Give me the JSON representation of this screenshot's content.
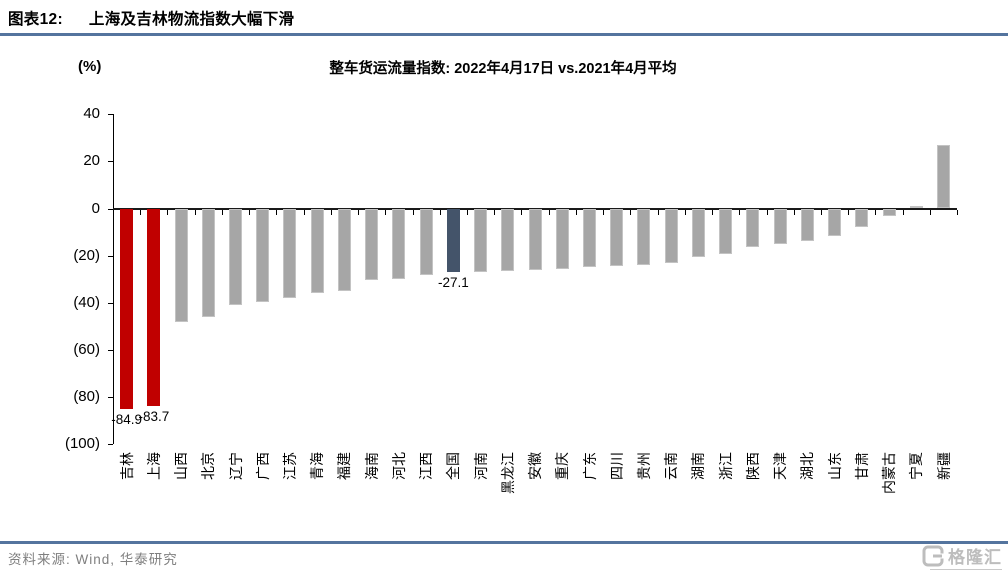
{
  "header": {
    "figure_label": "图表12:",
    "title": "上海及吉林物流指数大幅下滑"
  },
  "palette": {
    "bar_default": "#A6A6A6",
    "bar_red": "#C00000",
    "bar_navy": "#44546A",
    "rule_blue": "#54749E",
    "source_text": "#7F7F7F",
    "axis_black": "#000000"
  },
  "chart_data": {
    "type": "bar",
    "title": "整车货运流量指数: 2022年4月17日 vs.2021年4月平均",
    "ylabel": "(%)",
    "xlabel": "",
    "ylim": [
      -100,
      40
    ],
    "grid": false,
    "legend": "none",
    "ytick_labels": [
      "40",
      "20",
      "0",
      "(20)",
      "(40)",
      "(60)",
      "(80)",
      "(100)"
    ],
    "ytick_values": [
      40,
      20,
      0,
      -20,
      -40,
      -60,
      -80,
      -100
    ],
    "categories": [
      "吉林",
      "上海",
      "山西",
      "北京",
      "辽宁",
      "广西",
      "江苏",
      "青海",
      "福建",
      "海南",
      "河北",
      "江西",
      "全国",
      "河南",
      "黑龙江",
      "安徽",
      "重庆",
      "广东",
      "四川",
      "贵州",
      "云南",
      "湖南",
      "浙江",
      "陕西",
      "天津",
      "湖北",
      "山东",
      "甘肃",
      "内蒙古",
      "宁夏",
      "新疆"
    ],
    "values": [
      -84.9,
      -83.7,
      -48.3,
      -46.0,
      -40.8,
      -39.6,
      -38.0,
      -35.7,
      -34.8,
      -30.4,
      -30.0,
      -28.3,
      -27.1,
      -26.8,
      -26.4,
      -26.0,
      -25.6,
      -25.0,
      -24.5,
      -23.9,
      -23.2,
      -20.4,
      -19.2,
      -16.3,
      -15.2,
      -13.9,
      -11.8,
      -7.9,
      -3.2,
      1.0,
      27.0
    ],
    "highlighted": {
      "red_categories": [
        "吉林",
        "上海"
      ],
      "navy_categories": [
        "全国"
      ]
    },
    "data_labels": [
      {
        "category": "吉林",
        "text": "-84.9"
      },
      {
        "category": "上海",
        "text": "-83.7"
      },
      {
        "category": "全国",
        "text": "-27.1"
      }
    ]
  },
  "footer": {
    "source": "资料来源: Wind, 华泰研究",
    "logo_text": "格隆汇"
  }
}
